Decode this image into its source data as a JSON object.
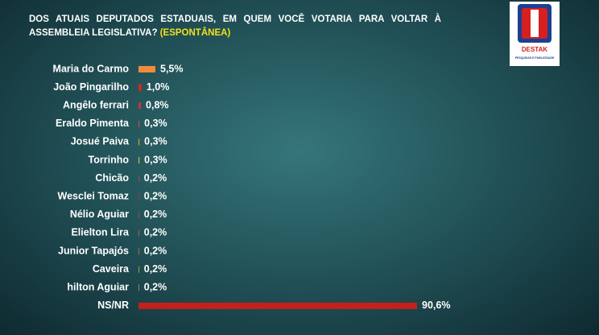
{
  "chart_data": {
    "type": "bar",
    "orientation": "horizontal",
    "title": "DOS ATUAIS DEPUTADOS ESTADUAIS, EM QUEM VOCÊ VOTARIA PARA VOLTAR À ASSEMBLEIA LEGISLATIVA?",
    "subtitle": "(ESPONTÂNEA)",
    "categories": [
      "Maria do Carmo",
      "João Pingarilho",
      "Angêlo ferrari",
      "Eraldo Pimenta",
      "Josué Paiva",
      "Torrinho",
      "Chicão",
      "Wesclei Tomaz",
      "Nélio Aguiar",
      "Elielton Lira",
      "Junior Tapajós",
      "Caveira",
      "hilton Aguiar",
      "NS/NR"
    ],
    "values": [
      5.5,
      1.0,
      0.8,
      0.3,
      0.3,
      0.3,
      0.2,
      0.2,
      0.2,
      0.2,
      0.2,
      0.2,
      0.2,
      90.6
    ],
    "value_labels": [
      "5,5%",
      "1,0%",
      "0,8%",
      "0,3%",
      "0,3%",
      "0,3%",
      "0,2%",
      "0,2%",
      "0,2%",
      "0,2%",
      "0,2%",
      "0,2%",
      "0,2%",
      "90,6%"
    ],
    "colors": [
      "#f28a3e",
      "#e02222",
      "#c8323e",
      "#d04848",
      "#e0a034",
      "#e0b444",
      "#d44634",
      "#c83232",
      "#c84444",
      "#d06434",
      "#e07434",
      "#e0b434",
      "#e08434",
      "#c4201e"
    ]
  },
  "logo": {
    "name": "DESTAK",
    "tagline": "PESQUISAS E PUBLICIDADE"
  }
}
